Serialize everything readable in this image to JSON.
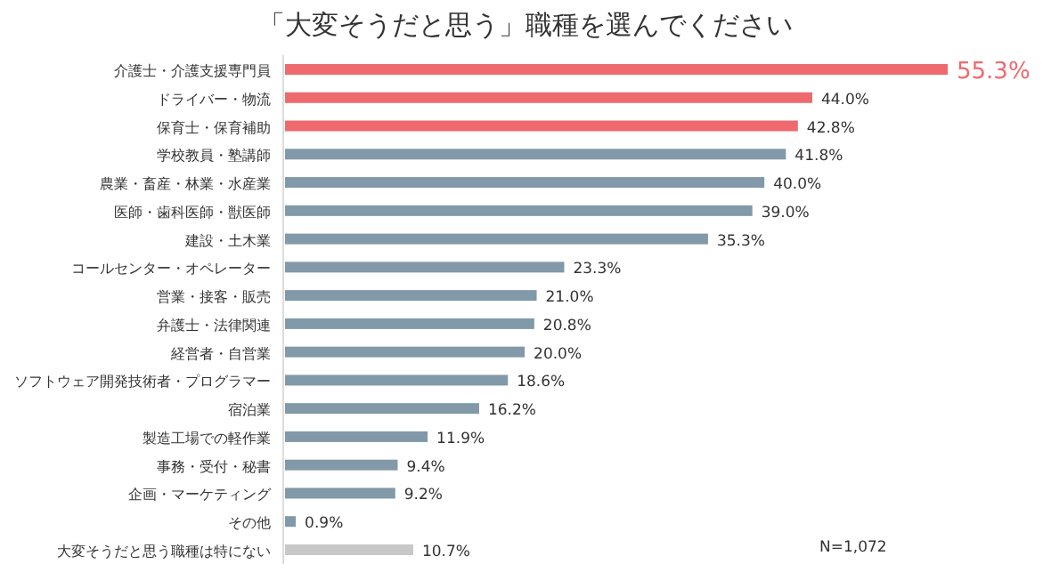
{
  "chart_data": {
    "type": "bar",
    "orientation": "horizontal",
    "title": "「大変そうだと思う」職種を選んでください",
    "categories": [
      "介護士・介護支援専門員",
      "ドライバー・物流",
      "保育士・保育補助",
      "学校教員・塾講師",
      "農業・畜産・林業・水産業",
      "医師・歯科医師・獣医師",
      "建設・土木業",
      "コールセンター・オペレーター",
      "営業・接客・販売",
      "弁護士・法律関連",
      "経営者・自営業",
      "ソフトウェア開発技術者・プログラマー",
      "宿泊業",
      "製造工場での軽作業",
      "事務・受付・秘書",
      "企画・マーケティング",
      "その他",
      "大変そうだと思う職種は特にない"
    ],
    "values": [
      55.3,
      44.0,
      42.8,
      41.8,
      40.0,
      39.0,
      35.3,
      23.3,
      21.0,
      20.8,
      20.0,
      18.6,
      16.2,
      11.9,
      9.4,
      9.2,
      0.9,
      10.7
    ],
    "value_labels": [
      "55.3%",
      "44.0%",
      "42.8%",
      "41.8%",
      "40.0%",
      "39.0%",
      "35.3%",
      "23.3%",
      "21.0%",
      "20.8%",
      "20.0%",
      "18.6%",
      "16.2%",
      "11.9%",
      "9.4%",
      "9.2%",
      "0.9%",
      "10.7%"
    ],
    "colors": [
      "#ee6a6e",
      "#ee6a6e",
      "#ee6a6e",
      "#8199a8",
      "#8199a8",
      "#8199a8",
      "#8199a8",
      "#8199a8",
      "#8199a8",
      "#8199a8",
      "#8199a8",
      "#8199a8",
      "#8199a8",
      "#8199a8",
      "#8199a8",
      "#8199a8",
      "#8199a8",
      "#c8c8c8"
    ],
    "annotations": [
      "N=1,072"
    ]
  }
}
